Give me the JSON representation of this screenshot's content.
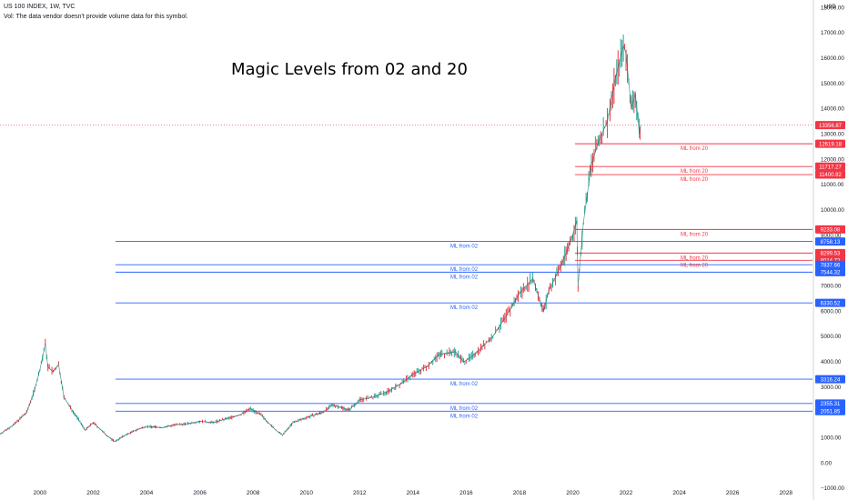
{
  "header": {
    "symbol_line": "US 100 INDEX, 1W, TVC",
    "volume_note": "Vol: The data vendor doesn't provide volume data for this symbol."
  },
  "title": "Magic Levels from 02 and 20",
  "price_unit": "USD",
  "colors": {
    "blue_levels": "#2962ff",
    "red_levels": "#f23645",
    "candles": "#26a69a"
  },
  "chart_data": {
    "type": "line",
    "title": "Magic Levels from 02 and 20",
    "xlabel": "",
    "ylabel": "",
    "xlim": [
      1998.5,
      2029.0
    ],
    "ylim": [
      -1100,
      18300
    ],
    "grid": false,
    "legend": "none",
    "x_ticks": [
      "2000",
      "2002",
      "2004",
      "2006",
      "2008",
      "2010",
      "2012",
      "2014",
      "2016",
      "2018",
      "2020",
      "2022",
      "2024",
      "2026",
      "2028"
    ],
    "y_ticks": [
      "18000.00",
      "17000.00",
      "16000.00",
      "15000.00",
      "14000.00",
      "13000.00",
      "12000.00",
      "11000.00",
      "10000.00",
      "9000.00",
      "8000.00",
      "7000.00",
      "6000.00",
      "5000.00",
      "4000.00",
      "3000.00",
      "2000.00",
      "1000.00",
      "0.00",
      "−1000.00"
    ],
    "series": [
      {
        "values": [
          [
            1998.5,
            1150
          ],
          [
            1999.0,
            1500
          ],
          [
            1999.5,
            2000
          ],
          [
            1999.8,
            2900
          ],
          [
            2000.0,
            3700
          ],
          [
            2000.2,
            4700
          ],
          [
            2000.3,
            3800
          ],
          [
            2000.5,
            3600
          ],
          [
            2000.7,
            3900
          ],
          [
            2000.9,
            2600
          ],
          [
            2001.2,
            2100
          ],
          [
            2001.4,
            1800
          ],
          [
            2001.7,
            1300
          ],
          [
            2002.0,
            1600
          ],
          [
            2002.5,
            1100
          ],
          [
            2002.8,
            850
          ],
          [
            2003.2,
            1100
          ],
          [
            2003.6,
            1300
          ],
          [
            2004.0,
            1450
          ],
          [
            2004.6,
            1400
          ],
          [
            2005.0,
            1500
          ],
          [
            2005.5,
            1550
          ],
          [
            2006.0,
            1650
          ],
          [
            2006.5,
            1600
          ],
          [
            2007.0,
            1750
          ],
          [
            2007.5,
            1900
          ],
          [
            2007.9,
            2150
          ],
          [
            2008.3,
            1900
          ],
          [
            2008.8,
            1350
          ],
          [
            2009.1,
            1100
          ],
          [
            2009.5,
            1600
          ],
          [
            2010.0,
            1800
          ],
          [
            2010.6,
            2000
          ],
          [
            2011.0,
            2300
          ],
          [
            2011.6,
            2100
          ],
          [
            2012.0,
            2500
          ],
          [
            2012.5,
            2600
          ],
          [
            2013.0,
            2800
          ],
          [
            2013.5,
            3100
          ],
          [
            2014.0,
            3500
          ],
          [
            2014.5,
            3800
          ],
          [
            2015.0,
            4300
          ],
          [
            2015.6,
            4400
          ],
          [
            2015.9,
            4000
          ],
          [
            2016.2,
            4200
          ],
          [
            2016.7,
            4700
          ],
          [
            2017.0,
            5000
          ],
          [
            2017.5,
            5800
          ],
          [
            2018.0,
            6700
          ],
          [
            2018.5,
            7300
          ],
          [
            2018.9,
            6000
          ],
          [
            2019.1,
            6800
          ],
          [
            2019.6,
            7900
          ],
          [
            2020.0,
            9000
          ],
          [
            2020.15,
            9600
          ],
          [
            2020.2,
            7000
          ],
          [
            2020.4,
            9500
          ],
          [
            2020.7,
            11800
          ],
          [
            2021.0,
            12800
          ],
          [
            2021.3,
            13500
          ],
          [
            2021.6,
            15200
          ],
          [
            2021.9,
            16500
          ],
          [
            2022.0,
            16200
          ],
          [
            2022.2,
            14000
          ],
          [
            2022.35,
            14600
          ],
          [
            2022.5,
            13000
          ],
          [
            2022.55,
            13357
          ]
        ]
      }
    ],
    "levels_from_02": [
      {
        "value": 8758.13,
        "label": "ML from 02",
        "tag": "8758.13"
      },
      {
        "value": 7837.66,
        "label": "ML from 02",
        "tag": "7837.66"
      },
      {
        "value": 7544.32,
        "label": "ML from 02",
        "tag": "7544.32"
      },
      {
        "value": 6330.52,
        "label": "ML from 02",
        "tag": "6330.52"
      },
      {
        "value": 3316.24,
        "label": "ML from 02",
        "tag": "3316.24"
      },
      {
        "value": 2355.31,
        "label": "ML from 02",
        "tag": "2355.31"
      },
      {
        "value": 2051.85,
        "label": "ML from 02",
        "tag": "2051.85"
      }
    ],
    "levels_from_20": [
      {
        "value": 12619.18,
        "label": "ML from 20",
        "tag": "12619.18"
      },
      {
        "value": 11717.27,
        "label": "ML from 20",
        "tag": "11717.27"
      },
      {
        "value": 11400.82,
        "label": "ML from 20",
        "tag": "11400.82"
      },
      {
        "value": 9233.08,
        "label": "ML from 20",
        "tag": "9233.08"
      },
      {
        "value": 8299.53,
        "label": "ML from 20",
        "tag": "8299.53"
      },
      {
        "value": 8014.72,
        "label": "ML from 20",
        "tag": "8014.72"
      }
    ],
    "last_price": {
      "value": 13356.87,
      "tag": "13356.87"
    }
  }
}
